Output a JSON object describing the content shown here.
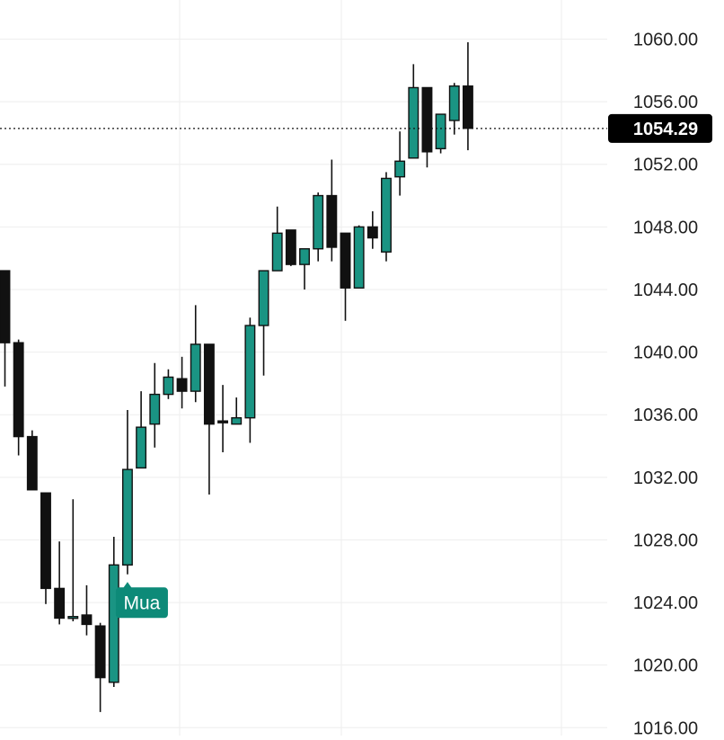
{
  "chart_data": {
    "type": "candlestick",
    "title": "",
    "xlabel": "",
    "ylabel": "",
    "ylim": [
      1015.5,
      1062.5
    ],
    "y_ticks": [
      "1060.00",
      "1056.00",
      "1052.00",
      "1048.00",
      "1044.00",
      "1040.00",
      "1036.00",
      "1032.00",
      "1028.00",
      "1024.00",
      "1020.00",
      "1016.00"
    ],
    "grid": true,
    "last_price": "1054.29",
    "last_price_value": 1054.29,
    "annotation": {
      "label": "Mua",
      "candle_index": 9
    },
    "colors": {
      "up": "#1a9483",
      "down": "#111111",
      "grid": "#eeeeee",
      "axis_text": "#222222",
      "price_badge": "#000000",
      "annotation": "#0d8a78"
    },
    "candles": [
      {
        "o": 1045.2,
        "h": 1045.2,
        "l": 1037.8,
        "c": 1040.6
      },
      {
        "o": 1040.6,
        "h": 1040.8,
        "l": 1033.4,
        "c": 1034.6
      },
      {
        "o": 1034.6,
        "h": 1035.0,
        "l": 1031.2,
        "c": 1031.2
      },
      {
        "o": 1031.0,
        "h": 1031.0,
        "l": 1023.9,
        "c": 1024.9
      },
      {
        "o": 1024.9,
        "h": 1027.9,
        "l": 1022.6,
        "c": 1023.0
      },
      {
        "o": 1023.1,
        "h": 1030.6,
        "l": 1022.8,
        "c": 1023.1
      },
      {
        "o": 1023.2,
        "h": 1025.1,
        "l": 1021.9,
        "c": 1022.6
      },
      {
        "o": 1022.5,
        "h": 1022.7,
        "l": 1017.0,
        "c": 1019.2
      },
      {
        "o": 1018.9,
        "h": 1028.2,
        "l": 1018.6,
        "c": 1026.4
      },
      {
        "o": 1026.4,
        "h": 1036.3,
        "l": 1025.8,
        "c": 1032.5
      },
      {
        "o": 1032.6,
        "h": 1037.5,
        "l": 1032.6,
        "c": 1035.2
      },
      {
        "o": 1035.4,
        "h": 1039.3,
        "l": 1033.9,
        "c": 1037.3
      },
      {
        "o": 1037.3,
        "h": 1038.9,
        "l": 1037.0,
        "c": 1038.4
      },
      {
        "o": 1038.3,
        "h": 1039.7,
        "l": 1036.4,
        "c": 1037.5
      },
      {
        "o": 1037.5,
        "h": 1043.0,
        "l": 1036.8,
        "c": 1040.5
      },
      {
        "o": 1040.5,
        "h": 1040.5,
        "l": 1030.9,
        "c": 1035.4
      },
      {
        "o": 1035.6,
        "h": 1037.9,
        "l": 1033.6,
        "c": 1035.5
      },
      {
        "o": 1035.4,
        "h": 1037.1,
        "l": 1035.4,
        "c": 1035.8
      },
      {
        "o": 1035.8,
        "h": 1042.2,
        "l": 1034.2,
        "c": 1041.7
      },
      {
        "o": 1041.7,
        "h": 1045.2,
        "l": 1038.5,
        "c": 1045.2
      },
      {
        "o": 1045.2,
        "h": 1049.3,
        "l": 1045.2,
        "c": 1047.6
      },
      {
        "o": 1047.8,
        "h": 1047.8,
        "l": 1045.5,
        "c": 1045.6
      },
      {
        "o": 1045.6,
        "h": 1046.5,
        "l": 1044.0,
        "c": 1046.6
      },
      {
        "o": 1046.6,
        "h": 1050.2,
        "l": 1045.8,
        "c": 1050.0
      },
      {
        "o": 1050.0,
        "h": 1052.3,
        "l": 1045.8,
        "c": 1046.7
      },
      {
        "o": 1047.6,
        "h": 1047.6,
        "l": 1042.0,
        "c": 1044.1
      },
      {
        "o": 1044.1,
        "h": 1048.1,
        "l": 1044.1,
        "c": 1048.0
      },
      {
        "o": 1048.0,
        "h": 1049.0,
        "l": 1046.6,
        "c": 1047.3
      },
      {
        "o": 1046.4,
        "h": 1051.5,
        "l": 1045.8,
        "c": 1051.1
      },
      {
        "o": 1051.2,
        "h": 1054.1,
        "l": 1050.0,
        "c": 1052.2
      },
      {
        "o": 1052.4,
        "h": 1058.4,
        "l": 1052.4,
        "c": 1056.9
      },
      {
        "o": 1056.9,
        "h": 1056.9,
        "l": 1051.8,
        "c": 1052.8
      },
      {
        "o": 1053.0,
        "h": 1055.2,
        "l": 1052.7,
        "c": 1055.2
      },
      {
        "o": 1054.8,
        "h": 1057.2,
        "l": 1053.9,
        "c": 1057.0
      },
      {
        "o": 1057.0,
        "h": 1059.8,
        "l": 1052.9,
        "c": 1054.3
      }
    ]
  }
}
